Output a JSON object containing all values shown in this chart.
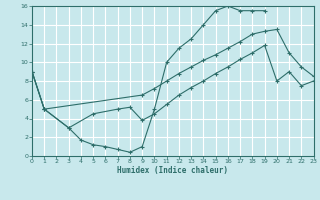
{
  "xlabel": "Humidex (Indice chaleur)",
  "bg_color": "#c8e8ec",
  "grid_color": "#b0d8dc",
  "line_color": "#2e6e6a",
  "xlim": [
    0,
    23
  ],
  "ylim": [
    0,
    16
  ],
  "xticks": [
    0,
    1,
    2,
    3,
    4,
    5,
    6,
    7,
    8,
    9,
    10,
    11,
    12,
    13,
    14,
    15,
    16,
    17,
    18,
    19,
    20,
    21,
    22,
    23
  ],
  "yticks": [
    0,
    2,
    4,
    6,
    8,
    10,
    12,
    14,
    16
  ],
  "line1_x": [
    0,
    1,
    3,
    4,
    5,
    6,
    7,
    8,
    9,
    10,
    11,
    12,
    13,
    14,
    15,
    16,
    17,
    18,
    19
  ],
  "line1_y": [
    9,
    5,
    3,
    1.7,
    1.2,
    1.0,
    0.7,
    0.4,
    1.0,
    5.0,
    10.0,
    11.5,
    12.5,
    14.0,
    15.5,
    16.0,
    15.5,
    15.5,
    15.5
  ],
  "line2_x": [
    0,
    1,
    9,
    10,
    11,
    12,
    13,
    14,
    15,
    16,
    17,
    18,
    19,
    20,
    21,
    22,
    23
  ],
  "line2_y": [
    9,
    5.0,
    6.5,
    7.2,
    8.0,
    8.8,
    9.5,
    10.2,
    10.8,
    11.5,
    12.2,
    13.0,
    13.3,
    13.5,
    11.0,
    9.5,
    8.5
  ],
  "line3_x": [
    0,
    1,
    3,
    5,
    7,
    8,
    9,
    10,
    11,
    12,
    13,
    14,
    15,
    16,
    17,
    18,
    19,
    20,
    21,
    22,
    23
  ],
  "line3_y": [
    9,
    5.0,
    3.0,
    4.5,
    5.0,
    5.2,
    3.8,
    4.5,
    5.5,
    6.5,
    7.3,
    8.0,
    8.8,
    9.5,
    10.3,
    11.0,
    11.8,
    8.0,
    9.0,
    7.5,
    8.0
  ]
}
